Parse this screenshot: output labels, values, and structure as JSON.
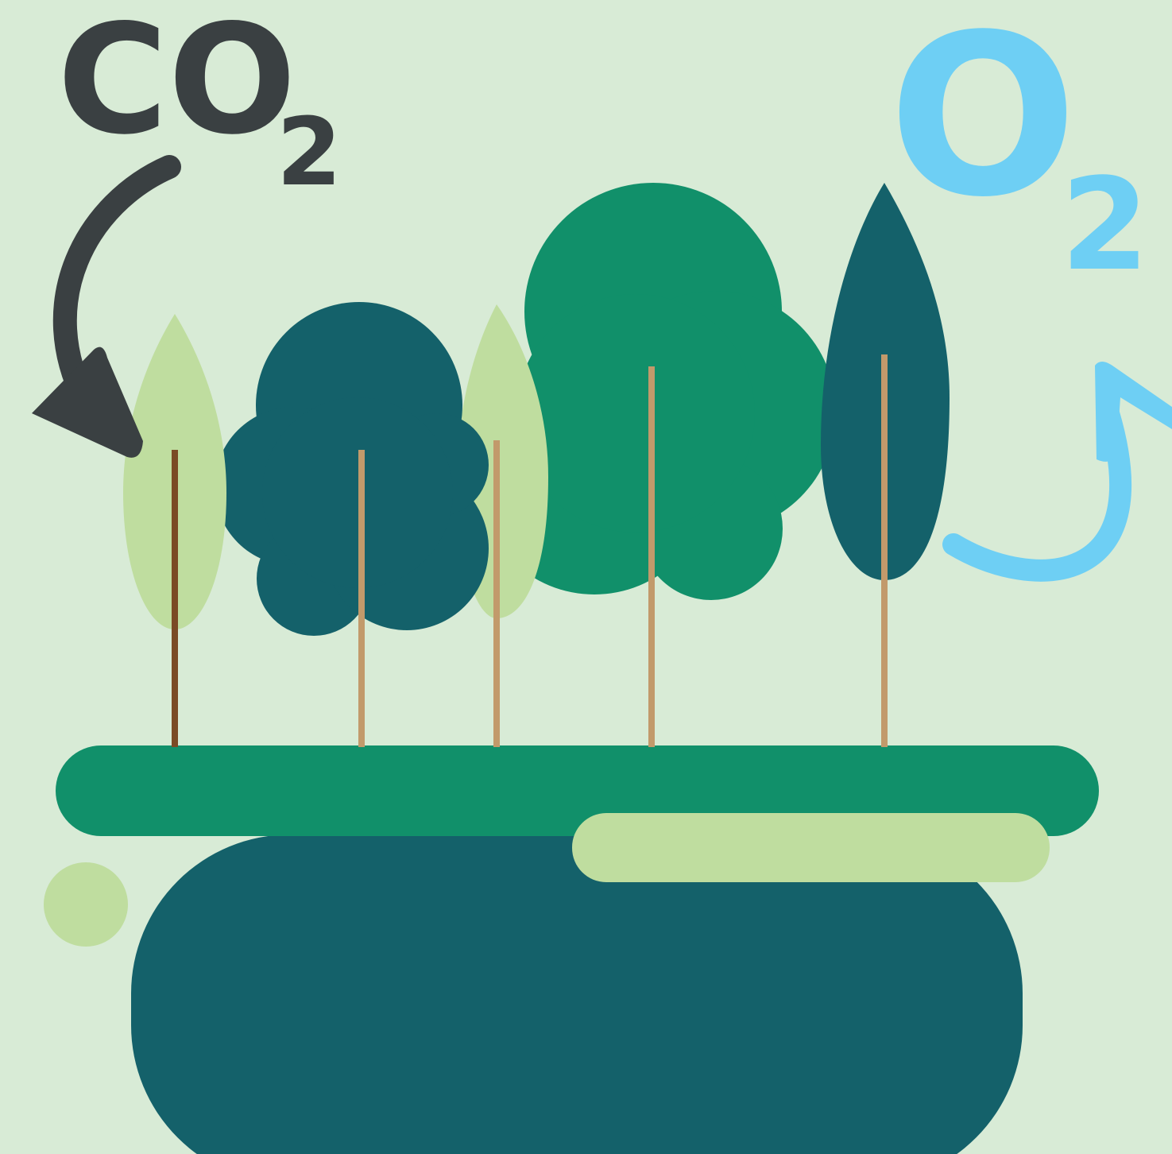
{
  "co2": {
    "formula": "CO",
    "subscript": "2"
  },
  "o2": {
    "formula": "O",
    "subscript": "2"
  }
}
